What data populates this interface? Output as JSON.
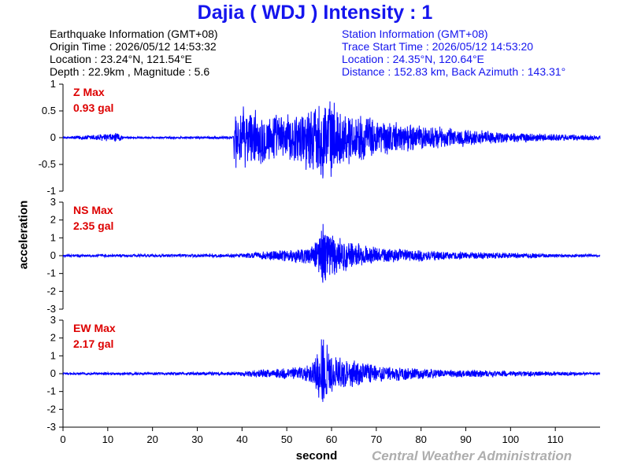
{
  "header": {
    "title": "Dajia ( WDJ ) Intensity : 1"
  },
  "earthquake": {
    "heading": "Earthquake Information  (GMT+08)",
    "origin_time": "Origin Time : 2026/05/12 14:53:32",
    "location": "Location : 23.24°N, 121.54°E",
    "depth_magnitude": "Depth : 22.9km , Magnitude : 5.6"
  },
  "station": {
    "heading": "Station Information  (GMT+08)",
    "trace_start": "Trace Start Time : 2026/05/12 14:53:20",
    "location": "Location : 24.35°N, 120.64°E",
    "distance_azimuth": "Distance : 152.83 km, Back Azimuth : 143.31°"
  },
  "axes": {
    "ylabel": "acceleration",
    "xlabel": "second"
  },
  "credit": "Central Weather Administration",
  "colors": {
    "title": "#1515ee",
    "trace": "#0000ff",
    "max_label": "#dd0000",
    "credit": "#aeaeae"
  },
  "chart_data": {
    "type": "line",
    "x": {
      "min": 0,
      "max": 120,
      "ticks": [
        0,
        10,
        20,
        30,
        40,
        50,
        60,
        70,
        80,
        90,
        100,
        110
      ]
    },
    "panels": [
      {
        "name": "Z",
        "max_title": "Z Max",
        "max_value": "0.93 gal",
        "ylim": [
          -1,
          1
        ],
        "yticks": [
          1,
          0.5,
          0,
          -0.5,
          -1
        ],
        "ytick_labels": [
          "1",
          "0.5",
          "0",
          "-0.5",
          "-1"
        ],
        "series": [
          {
            "t": 0,
            "noise": 0.02
          },
          {
            "t": 12.5,
            "noise": 0.1
          },
          {
            "t": 13.5,
            "noise": 0.02
          },
          {
            "t": 38,
            "noise": 0.03
          },
          {
            "t": 38.3,
            "noise": 0.62
          },
          {
            "t": 50,
            "noise": 0.45
          },
          {
            "t": 57.5,
            "noise": 0.75
          },
          {
            "t": 58.5,
            "noise": 0.9
          },
          {
            "t": 62,
            "noise": 0.55
          },
          {
            "t": 75,
            "noise": 0.3
          },
          {
            "t": 90,
            "noise": 0.17
          },
          {
            "t": 100,
            "noise": 0.1
          },
          {
            "t": 120,
            "noise": 0.05
          }
        ]
      },
      {
        "name": "NS",
        "max_title": "NS Max",
        "max_value": "2.35 gal",
        "ylim": [
          -3,
          3
        ],
        "yticks": [
          3,
          2,
          1,
          0,
          -1,
          -2,
          -3
        ],
        "ytick_labels": [
          "3",
          "2",
          "1",
          "0",
          "-1",
          "-2",
          "-3"
        ],
        "series": [
          {
            "t": 0,
            "noise": 0.08
          },
          {
            "t": 38,
            "noise": 0.1
          },
          {
            "t": 45,
            "noise": 0.25
          },
          {
            "t": 55,
            "noise": 0.5
          },
          {
            "t": 57,
            "noise": 1.3
          },
          {
            "t": 58,
            "noise": 2.35
          },
          {
            "t": 60,
            "noise": 1.2
          },
          {
            "t": 70,
            "noise": 0.5
          },
          {
            "t": 85,
            "noise": 0.25
          },
          {
            "t": 120,
            "noise": 0.07
          }
        ]
      },
      {
        "name": "EW",
        "max_title": "EW Max",
        "max_value": "2.17 gal",
        "ylim": [
          -3,
          3
        ],
        "yticks": [
          3,
          2,
          1,
          0,
          -1,
          -2,
          -3
        ],
        "ytick_labels": [
          "3",
          "2",
          "1",
          "0",
          "-1",
          "-2",
          "-3"
        ],
        "series": [
          {
            "t": 0,
            "noise": 0.07
          },
          {
            "t": 38,
            "noise": 0.1
          },
          {
            "t": 45,
            "noise": 0.25
          },
          {
            "t": 55,
            "noise": 0.5
          },
          {
            "t": 57,
            "noise": 1.4
          },
          {
            "t": 58,
            "noise": 2.17
          },
          {
            "t": 60,
            "noise": 1.1
          },
          {
            "t": 70,
            "noise": 0.5
          },
          {
            "t": 85,
            "noise": 0.25
          },
          {
            "t": 120,
            "noise": 0.08
          }
        ]
      }
    ]
  }
}
